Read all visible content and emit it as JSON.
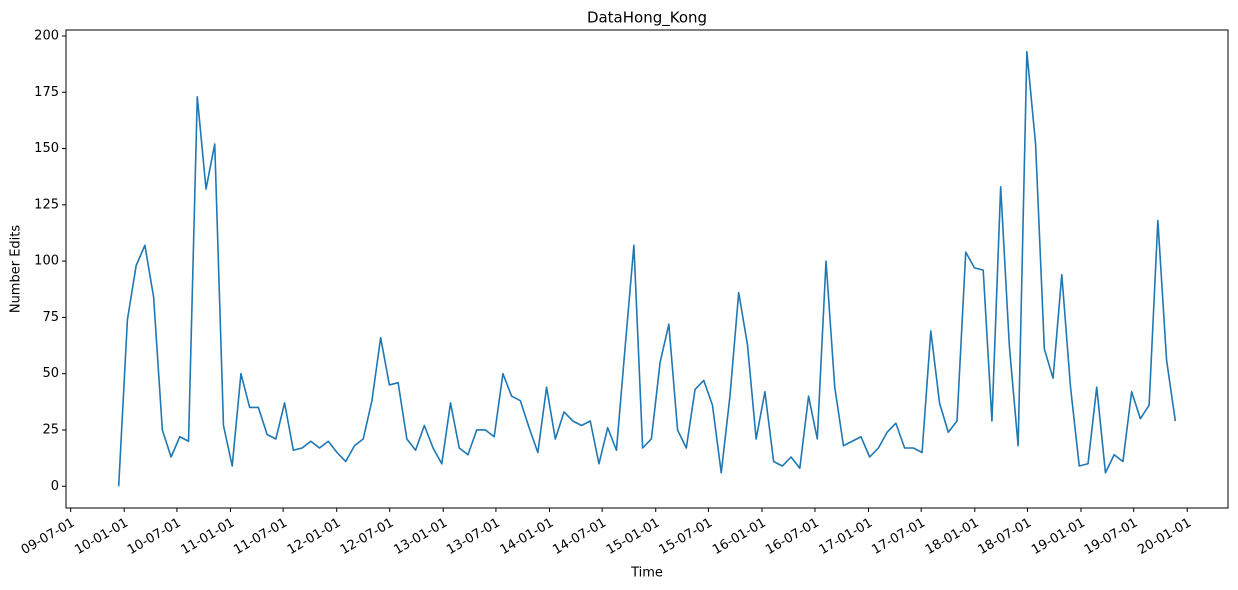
{
  "chart_data": {
    "type": "line",
    "title": "DataHong_Kong",
    "x_label": "Time",
    "y_label": "Number Edits",
    "x": [
      "2009-12-13",
      "2010-01-12",
      "2010-02-11",
      "2010-03-13",
      "2010-04-12",
      "2010-05-12",
      "2010-06-11",
      "2010-07-11",
      "2010-08-10",
      "2010-09-09",
      "2010-10-09",
      "2010-11-08",
      "2010-12-08",
      "2011-01-07",
      "2011-02-06",
      "2011-03-08",
      "2011-04-07",
      "2011-05-07",
      "2011-06-06",
      "2011-07-06",
      "2011-08-05",
      "2011-09-04",
      "2011-10-04",
      "2011-11-03",
      "2011-12-03",
      "2012-01-02",
      "2012-02-01",
      "2012-03-02",
      "2012-04-01",
      "2012-05-01",
      "2012-05-31",
      "2012-06-30",
      "2012-07-30",
      "2012-08-29",
      "2012-09-28",
      "2012-10-28",
      "2012-11-27",
      "2012-12-27",
      "2013-01-26",
      "2013-02-25",
      "2013-03-27",
      "2013-04-26",
      "2013-05-26",
      "2013-06-25",
      "2013-07-25",
      "2013-08-24",
      "2013-09-23",
      "2013-10-23",
      "2013-11-22",
      "2013-12-22",
      "2014-01-21",
      "2014-02-20",
      "2014-03-22",
      "2014-04-21",
      "2014-05-21",
      "2014-06-20",
      "2014-07-20",
      "2014-08-19",
      "2014-09-18",
      "2014-10-18",
      "2014-11-17",
      "2014-12-17",
      "2015-01-16",
      "2015-02-15",
      "2015-03-17",
      "2015-04-16",
      "2015-05-16",
      "2015-06-15",
      "2015-07-15",
      "2015-08-14",
      "2015-09-13",
      "2015-10-13",
      "2015-11-12",
      "2015-12-12",
      "2016-01-11",
      "2016-02-10",
      "2016-03-11",
      "2016-04-10",
      "2016-05-10",
      "2016-06-09",
      "2016-07-09",
      "2016-08-08",
      "2016-09-07",
      "2016-10-07",
      "2016-11-06",
      "2016-12-06",
      "2017-01-05",
      "2017-02-04",
      "2017-03-06",
      "2017-04-05",
      "2017-05-05",
      "2017-06-04",
      "2017-07-04",
      "2017-08-03",
      "2017-09-02",
      "2017-10-02",
      "2017-11-01",
      "2017-12-01",
      "2017-12-31",
      "2018-01-30",
      "2018-03-01",
      "2018-03-31",
      "2018-04-30",
      "2018-05-30",
      "2018-06-29",
      "2018-07-29",
      "2018-08-28",
      "2018-09-27",
      "2018-10-27",
      "2018-11-26",
      "2018-12-26",
      "2019-01-25",
      "2019-02-24",
      "2019-03-26",
      "2019-04-25",
      "2019-05-25",
      "2019-06-24",
      "2019-07-24",
      "2019-08-23",
      "2019-09-22",
      "2019-10-22",
      "2019-11-21"
    ],
    "series": [
      {
        "name": "DataHong_Kong",
        "color": "#1f77b4",
        "values": [
          0,
          74,
          98,
          107,
          84,
          25,
          13,
          22,
          20,
          173,
          132,
          152,
          27,
          9,
          50,
          35,
          35,
          23,
          21,
          37,
          16,
          17,
          20,
          17,
          20,
          15,
          11,
          18,
          21,
          38,
          66,
          45,
          46,
          21,
          16,
          27,
          17,
          10,
          37,
          17,
          14,
          25,
          25,
          22,
          50,
          40,
          38,
          26,
          15,
          44,
          21,
          33,
          29,
          27,
          29,
          10,
          26,
          16,
          62,
          107,
          17,
          21,
          55,
          72,
          25,
          17,
          43,
          47,
          36,
          6,
          40,
          86,
          63,
          21,
          42,
          11,
          9,
          13,
          8,
          40,
          21,
          100,
          44,
          18,
          20,
          22,
          13,
          17,
          24,
          28,
          17,
          17,
          15,
          69,
          37,
          24,
          29,
          104,
          97,
          96,
          29,
          133,
          62,
          18,
          193,
          152,
          61,
          48,
          94,
          44,
          9,
          10,
          44,
          6,
          14,
          11,
          42,
          30,
          36,
          118,
          56,
          29
        ]
      }
    ],
    "xlim": [
      "2009-06-15",
      "2020-05-20"
    ],
    "ylim": [
      -9.65,
      202.65
    ],
    "yticks": [
      0,
      25,
      50,
      75,
      100,
      125,
      150,
      175,
      200
    ],
    "xticks": [
      {
        "value": "2009-07-01",
        "label": "09-07-01"
      },
      {
        "value": "2010-01-01",
        "label": "10-01-01"
      },
      {
        "value": "2010-07-01",
        "label": "10-07-01"
      },
      {
        "value": "2011-01-01",
        "label": "11-01-01"
      },
      {
        "value": "2011-07-01",
        "label": "11-07-01"
      },
      {
        "value": "2012-01-01",
        "label": "12-01-01"
      },
      {
        "value": "2012-07-01",
        "label": "12-07-01"
      },
      {
        "value": "2013-01-01",
        "label": "13-01-01"
      },
      {
        "value": "2013-07-01",
        "label": "13-07-01"
      },
      {
        "value": "2014-01-01",
        "label": "14-01-01"
      },
      {
        "value": "2014-07-01",
        "label": "14-07-01"
      },
      {
        "value": "2015-01-01",
        "label": "15-01-01"
      },
      {
        "value": "2015-07-01",
        "label": "15-07-01"
      },
      {
        "value": "2016-01-01",
        "label": "16-01-01"
      },
      {
        "value": "2016-07-01",
        "label": "16-07-01"
      },
      {
        "value": "2017-01-01",
        "label": "17-01-01"
      },
      {
        "value": "2017-07-01",
        "label": "17-07-01"
      },
      {
        "value": "2018-01-01",
        "label": "18-01-01"
      },
      {
        "value": "2018-07-01",
        "label": "18-07-01"
      },
      {
        "value": "2019-01-01",
        "label": "19-01-01"
      },
      {
        "value": "2019-07-01",
        "label": "19-07-01"
      },
      {
        "value": "2020-01-01",
        "label": "20-01-01"
      }
    ],
    "grid": false
  }
}
